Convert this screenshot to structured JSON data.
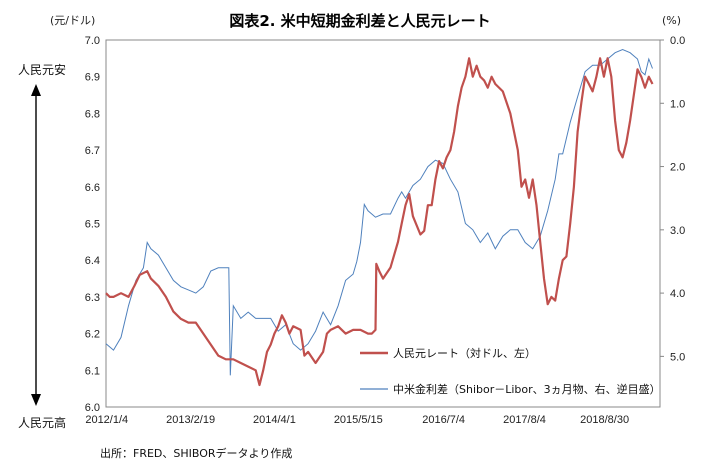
{
  "chart_data": {
    "type": "line",
    "title": "図表2. 米中短期金利差と人民元レート",
    "left_unit": "(元/ドル)",
    "right_unit": "(%)",
    "left_axis": {
      "min": 6.0,
      "max": 7.0,
      "ticks": [
        "7.0",
        "6.9",
        "6.8",
        "6.7",
        "6.6",
        "6.5",
        "6.4",
        "6.3",
        "6.2",
        "6.1",
        "6.0"
      ]
    },
    "right_axis": {
      "min": 0.0,
      "max": 5.8,
      "inverted": true,
      "ticks": [
        "0.0",
        "1.0",
        "2.0",
        "3.0",
        "4.0",
        "5.0"
      ]
    },
    "x_range": [
      2012.0,
      2019.4
    ],
    "x_ticks": [
      {
        "label": "2012/1/4",
        "x": 2012.01
      },
      {
        "label": "2013/2/19",
        "x": 2013.13
      },
      {
        "label": "2014/4/1",
        "x": 2014.25
      },
      {
        "label": "2015/5/15",
        "x": 2015.37
      },
      {
        "label": "2016/7/4",
        "x": 2016.51
      },
      {
        "label": "2017/8/4",
        "x": 2017.59
      },
      {
        "label": "2018/8/30",
        "x": 2018.66
      }
    ],
    "side_labels": {
      "top": "人民元安",
      "bottom": "人民元高"
    },
    "series": [
      {
        "name": "人民元レート（対ドル、左）",
        "axis": "left",
        "color": "#c0504d",
        "points": [
          [
            2012.0,
            6.31
          ],
          [
            2012.05,
            6.3
          ],
          [
            2012.1,
            6.3
          ],
          [
            2012.2,
            6.31
          ],
          [
            2012.3,
            6.3
          ],
          [
            2012.38,
            6.33
          ],
          [
            2012.45,
            6.36
          ],
          [
            2012.55,
            6.37
          ],
          [
            2012.6,
            6.35
          ],
          [
            2012.7,
            6.33
          ],
          [
            2012.8,
            6.3
          ],
          [
            2012.9,
            6.26
          ],
          [
            2013.0,
            6.24
          ],
          [
            2013.1,
            6.23
          ],
          [
            2013.2,
            6.23
          ],
          [
            2013.3,
            6.2
          ],
          [
            2013.4,
            6.17
          ],
          [
            2013.5,
            6.14
          ],
          [
            2013.6,
            6.13
          ],
          [
            2013.7,
            6.13
          ],
          [
            2013.8,
            6.12
          ],
          [
            2013.9,
            6.11
          ],
          [
            2014.0,
            6.1
          ],
          [
            2014.05,
            6.06
          ],
          [
            2014.1,
            6.1
          ],
          [
            2014.15,
            6.15
          ],
          [
            2014.2,
            6.17
          ],
          [
            2014.25,
            6.2
          ],
          [
            2014.3,
            6.22
          ],
          [
            2014.35,
            6.25
          ],
          [
            2014.4,
            6.23
          ],
          [
            2014.45,
            6.2
          ],
          [
            2014.5,
            6.22
          ],
          [
            2014.6,
            6.21
          ],
          [
            2014.65,
            6.14
          ],
          [
            2014.7,
            6.15
          ],
          [
            2014.8,
            6.12
          ],
          [
            2014.9,
            6.15
          ],
          [
            2014.95,
            6.2
          ],
          [
            2015.0,
            6.21
          ],
          [
            2015.1,
            6.22
          ],
          [
            2015.2,
            6.2
          ],
          [
            2015.3,
            6.21
          ],
          [
            2015.4,
            6.21
          ],
          [
            2015.5,
            6.2
          ],
          [
            2015.55,
            6.2
          ],
          [
            2015.6,
            6.21
          ],
          [
            2015.61,
            6.39
          ],
          [
            2015.65,
            6.37
          ],
          [
            2015.7,
            6.35
          ],
          [
            2015.8,
            6.38
          ],
          [
            2015.9,
            6.45
          ],
          [
            2015.95,
            6.5
          ],
          [
            2016.0,
            6.55
          ],
          [
            2016.05,
            6.58
          ],
          [
            2016.1,
            6.52
          ],
          [
            2016.2,
            6.47
          ],
          [
            2016.25,
            6.48
          ],
          [
            2016.3,
            6.55
          ],
          [
            2016.35,
            6.55
          ],
          [
            2016.4,
            6.62
          ],
          [
            2016.45,
            6.67
          ],
          [
            2016.5,
            6.65
          ],
          [
            2016.55,
            6.68
          ],
          [
            2016.6,
            6.7
          ],
          [
            2016.65,
            6.75
          ],
          [
            2016.7,
            6.82
          ],
          [
            2016.75,
            6.87
          ],
          [
            2016.8,
            6.9
          ],
          [
            2016.85,
            6.95
          ],
          [
            2016.9,
            6.9
          ],
          [
            2016.95,
            6.93
          ],
          [
            2017.0,
            6.9
          ],
          [
            2017.05,
            6.89
          ],
          [
            2017.1,
            6.87
          ],
          [
            2017.15,
            6.9
          ],
          [
            2017.2,
            6.88
          ],
          [
            2017.3,
            6.86
          ],
          [
            2017.4,
            6.8
          ],
          [
            2017.5,
            6.7
          ],
          [
            2017.55,
            6.6
          ],
          [
            2017.6,
            6.62
          ],
          [
            2017.65,
            6.57
          ],
          [
            2017.7,
            6.62
          ],
          [
            2017.75,
            6.55
          ],
          [
            2017.8,
            6.45
          ],
          [
            2017.85,
            6.35
          ],
          [
            2017.9,
            6.28
          ],
          [
            2017.95,
            6.3
          ],
          [
            2018.0,
            6.29
          ],
          [
            2018.05,
            6.35
          ],
          [
            2018.1,
            6.4
          ],
          [
            2018.15,
            6.41
          ],
          [
            2018.2,
            6.5
          ],
          [
            2018.25,
            6.6
          ],
          [
            2018.3,
            6.75
          ],
          [
            2018.35,
            6.83
          ],
          [
            2018.4,
            6.9
          ],
          [
            2018.45,
            6.88
          ],
          [
            2018.5,
            6.86
          ],
          [
            2018.55,
            6.9
          ],
          [
            2018.6,
            6.95
          ],
          [
            2018.65,
            6.9
          ],
          [
            2018.7,
            6.95
          ],
          [
            2018.75,
            6.9
          ],
          [
            2018.8,
            6.78
          ],
          [
            2018.85,
            6.7
          ],
          [
            2018.9,
            6.68
          ],
          [
            2018.95,
            6.72
          ],
          [
            2019.0,
            6.78
          ],
          [
            2019.05,
            6.85
          ],
          [
            2019.1,
            6.92
          ],
          [
            2019.15,
            6.9
          ],
          [
            2019.2,
            6.87
          ],
          [
            2019.25,
            6.9
          ],
          [
            2019.3,
            6.88
          ]
        ]
      },
      {
        "name": "中米金利差（Shibor－Libor、3ヵ月物、右、逆目盛）",
        "axis": "right",
        "color": "#4f81bd",
        "points": [
          [
            2012.0,
            4.8
          ],
          [
            2012.1,
            4.9
          ],
          [
            2012.2,
            4.7
          ],
          [
            2012.3,
            4.2
          ],
          [
            2012.4,
            3.8
          ],
          [
            2012.5,
            3.6
          ],
          [
            2012.55,
            3.2
          ],
          [
            2012.6,
            3.3
          ],
          [
            2012.7,
            3.4
          ],
          [
            2012.8,
            3.6
          ],
          [
            2012.9,
            3.8
          ],
          [
            2013.0,
            3.9
          ],
          [
            2013.1,
            3.95
          ],
          [
            2013.2,
            4.0
          ],
          [
            2013.3,
            3.9
          ],
          [
            2013.4,
            3.65
          ],
          [
            2013.5,
            3.6
          ],
          [
            2013.6,
            3.6
          ],
          [
            2013.64,
            3.6
          ],
          [
            2013.66,
            5.3
          ],
          [
            2013.7,
            4.2
          ],
          [
            2013.8,
            4.4
          ],
          [
            2013.9,
            4.3
          ],
          [
            2014.0,
            4.4
          ],
          [
            2014.1,
            4.4
          ],
          [
            2014.2,
            4.4
          ],
          [
            2014.3,
            4.6
          ],
          [
            2014.4,
            4.5
          ],
          [
            2014.5,
            4.8
          ],
          [
            2014.6,
            4.9
          ],
          [
            2014.7,
            4.8
          ],
          [
            2014.8,
            4.6
          ],
          [
            2014.9,
            4.3
          ],
          [
            2015.0,
            4.5
          ],
          [
            2015.1,
            4.2
          ],
          [
            2015.2,
            3.8
          ],
          [
            2015.3,
            3.7
          ],
          [
            2015.35,
            3.5
          ],
          [
            2015.4,
            3.2
          ],
          [
            2015.45,
            2.6
          ],
          [
            2015.5,
            2.7
          ],
          [
            2015.6,
            2.8
          ],
          [
            2015.7,
            2.75
          ],
          [
            2015.8,
            2.75
          ],
          [
            2015.9,
            2.5
          ],
          [
            2015.95,
            2.4
          ],
          [
            2016.0,
            2.5
          ],
          [
            2016.1,
            2.3
          ],
          [
            2016.2,
            2.2
          ],
          [
            2016.3,
            2.0
          ],
          [
            2016.4,
            1.9
          ],
          [
            2016.5,
            1.95
          ],
          [
            2016.6,
            2.2
          ],
          [
            2016.7,
            2.4
          ],
          [
            2016.8,
            2.9
          ],
          [
            2016.9,
            3.0
          ],
          [
            2016.95,
            3.1
          ],
          [
            2017.0,
            3.2
          ],
          [
            2017.1,
            3.05
          ],
          [
            2017.2,
            3.3
          ],
          [
            2017.3,
            3.1
          ],
          [
            2017.4,
            3.0
          ],
          [
            2017.5,
            3.0
          ],
          [
            2017.6,
            3.2
          ],
          [
            2017.7,
            3.3
          ],
          [
            2017.8,
            3.1
          ],
          [
            2017.9,
            2.7
          ],
          [
            2018.0,
            2.2
          ],
          [
            2018.05,
            1.8
          ],
          [
            2018.1,
            1.8
          ],
          [
            2018.2,
            1.3
          ],
          [
            2018.3,
            0.9
          ],
          [
            2018.4,
            0.5
          ],
          [
            2018.5,
            0.4
          ],
          [
            2018.6,
            0.4
          ],
          [
            2018.7,
            0.3
          ],
          [
            2018.8,
            0.2
          ],
          [
            2018.9,
            0.15
          ],
          [
            2019.0,
            0.2
          ],
          [
            2019.1,
            0.3
          ],
          [
            2019.15,
            0.5
          ],
          [
            2019.2,
            0.55
          ],
          [
            2019.25,
            0.3
          ],
          [
            2019.3,
            0.45
          ]
        ]
      }
    ]
  },
  "source_note": "出所：FRED、SHIBORデータより作成"
}
